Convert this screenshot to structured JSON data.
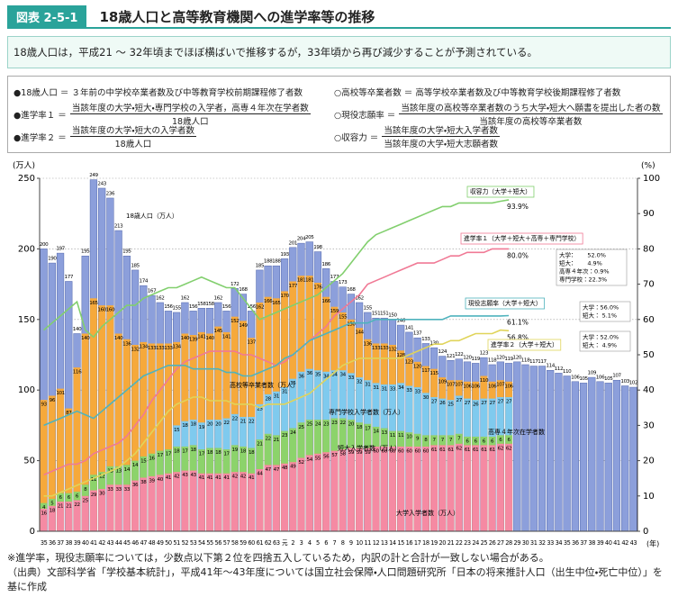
{
  "header": {
    "badge": "図表 2-5-1",
    "title": "18歳人口と高等教育機関への進学率等の推移"
  },
  "summary": "18歳人口は，平成21 ～ 32年頃までほぼ横ばいで推移するが，33年頃から再び減少することが予測されている。",
  "definitions": [
    {
      "label": "●18歳人口 ＝",
      "text": "３年前の中学校卒業者数及び中等教育学校前期課程修了者数"
    },
    {
      "label": "●進学率１ ＝",
      "num": "当該年度の大学・短大・専門学校の入学者，高専４年次在学者数",
      "den": "18歳人口"
    },
    {
      "label": "●進学率２ ＝",
      "num": "当該年度の大学・短大の入学者数",
      "den": "18歳人口"
    },
    {
      "label": "○高校等卒業者数 ＝",
      "text": "高等学校卒業者数及び中等教育学校後期課程修了者数"
    },
    {
      "label": "○現役志願率 ＝",
      "num": "当該年度の高校等卒業者数のうち大学・短大へ願書を提出した者の数",
      "den": "当該年度の高校等卒業者数"
    },
    {
      "label": "○収容力 ＝",
      "num": "当該年度の大学・短大入学者数",
      "den": "当該年度の大学・短大志願者数"
    }
  ],
  "chart_data": {
    "type": "bar",
    "y_label": "(万人)",
    "y2_label": "(%)",
    "x_label": "(年)",
    "ylim": [
      0,
      250
    ],
    "yticks": [
      0,
      50,
      100,
      150,
      200,
      250
    ],
    "y2lim": [
      0,
      100
    ],
    "y2ticks": [
      0,
      10,
      20,
      30,
      40,
      50,
      60,
      70,
      80,
      90,
      100
    ],
    "grid": true,
    "categories": [
      "35",
      "36",
      "37",
      "38",
      "39",
      "40",
      "41",
      "42",
      "43",
      "44",
      "45",
      "46",
      "47",
      "48",
      "49",
      "50",
      "51",
      "52",
      "53",
      "54",
      "55",
      "56",
      "57",
      "58",
      "59",
      "60",
      "61",
      "62",
      "63",
      "元",
      "2",
      "3",
      "4",
      "5",
      "6",
      "7",
      "8",
      "9",
      "10",
      "11",
      "12",
      "13",
      "14",
      "15",
      "16",
      "17",
      "18",
      "19",
      "20",
      "21",
      "22",
      "23",
      "24",
      "25",
      "26",
      "27",
      "28",
      "29",
      "30",
      "31",
      "32",
      "33",
      "34",
      "35",
      "36",
      "37",
      "38",
      "39",
      "40",
      "41",
      "42",
      "43"
    ],
    "series": [
      {
        "name": "18歳人口（万人）",
        "type": "bar",
        "stacked": false,
        "color": "#8c9fdb",
        "values": [
          200,
          190,
          197,
          177,
          140,
          195,
          249,
          243,
          236,
          213,
          195,
          185,
          174,
          167,
          162,
          156,
          155,
          162,
          156,
          158,
          158,
          162,
          156,
          172,
          168,
          156,
          185,
          188,
          188,
          193,
          201,
          204,
          205,
          198,
          186,
          177,
          173,
          168,
          162,
          155,
          151,
          151,
          150,
          146,
          141,
          137,
          133,
          130,
          124,
          121,
          122,
          120,
          119,
          123,
          118,
          120,
          119,
          120,
          118,
          117,
          117,
          114,
          112,
          110,
          106,
          105,
          109,
          106,
          105,
          107,
          103,
          102
        ]
      },
      {
        "name": "高校等卒業者数（万人）",
        "type": "bar",
        "stacked": false,
        "color": "#f6a93b",
        "values": [
          93,
          96,
          101,
          87,
          116,
          140,
          165,
          160,
          160,
          140,
          136,
          132,
          134,
          133,
          133,
          133,
          134,
          140,
          139,
          141,
          140,
          145,
          141,
          152,
          149,
          137,
          162,
          166,
          165,
          170,
          177,
          181,
          181,
          176,
          166,
          159,
          155,
          150,
          144,
          136,
          133,
          133,
          132,
          128,
          123,
          120,
          117,
          115,
          109,
          107,
          107,
          106,
          106,
          110,
          106,
          107,
          106,
          null,
          null,
          null,
          null,
          null,
          null,
          null,
          null,
          null,
          null,
          null,
          null,
          null,
          null,
          null
        ]
      },
      {
        "name": "大学入学者数（万人）",
        "type": "bar",
        "stacked": true,
        "color": "#f58aa3",
        "values": [
          16,
          18,
          21,
          21,
          22,
          25,
          29,
          30,
          33,
          33,
          33,
          36,
          38,
          39,
          40,
          41,
          42,
          43,
          43,
          41,
          41,
          41,
          41,
          42,
          42,
          41,
          44,
          47,
          47,
          48,
          49,
          52,
          54,
          55,
          56,
          57,
          58,
          59,
          59,
          59,
          60,
          60,
          60,
          60,
          60,
          60,
          60,
          61,
          61,
          61,
          62,
          61,
          61,
          61,
          61,
          62,
          62,
          null,
          null,
          null,
          null,
          null,
          null,
          null,
          null,
          null,
          null,
          null,
          null,
          null,
          null,
          null
        ]
      },
      {
        "name": "短大入学者数（万人）",
        "type": "bar",
        "stacked": true,
        "color": "#8cd36b",
        "values": [
          4,
          5,
          6,
          6,
          6,
          8,
          11,
          12,
          13,
          13,
          14,
          14,
          15,
          16,
          17,
          17,
          18,
          17,
          18,
          17,
          18,
          18,
          17,
          19,
          18,
          18,
          21,
          22,
          21,
          23,
          24,
          25,
          25,
          24,
          23,
          23,
          22,
          20,
          18,
          17,
          14,
          13,
          11,
          11,
          10,
          9,
          8,
          7,
          7,
          7,
          7,
          6,
          6,
          6,
          6,
          6,
          6,
          null,
          null,
          null,
          null,
          null,
          null,
          null,
          null,
          null,
          null,
          null,
          null,
          null,
          null,
          null
        ]
      },
      {
        "name": "専門学校入学者数（万人）",
        "type": "bar",
        "stacked": true,
        "color": "#7fcaee",
        "values": [
          null,
          null,
          null,
          null,
          null,
          null,
          null,
          null,
          null,
          null,
          null,
          null,
          null,
          null,
          null,
          null,
          15,
          18,
          18,
          19,
          20,
          20,
          22,
          22,
          21,
          22,
          25,
          28,
          31,
          31,
          35,
          36,
          36,
          35,
          34,
          34,
          34,
          33,
          32,
          31,
          31,
          31,
          33,
          34,
          33,
          33,
          30,
          27,
          26,
          25,
          27,
          27,
          26,
          27,
          27,
          27,
          27,
          null,
          null,
          null,
          null,
          null,
          null,
          null,
          null,
          null,
          null,
          null,
          null,
          null,
          null,
          null
        ]
      },
      {
        "name": "収容力（大学＋短大）",
        "type": "line",
        "axis": "y2",
        "color": "#82cf6e",
        "values": [
          57,
          59,
          61,
          63,
          65,
          57,
          55,
          58,
          60,
          62,
          64,
          64,
          66,
          67,
          68,
          69,
          69,
          70,
          71,
          72,
          71,
          70,
          69,
          69,
          66,
          63,
          60,
          61,
          62,
          63,
          64,
          65,
          66,
          67,
          69,
          71,
          73,
          76,
          79,
          82,
          84,
          85,
          86,
          87,
          88,
          89,
          90,
          91,
          92,
          92,
          93,
          93,
          93,
          93,
          93,
          93.5,
          93.9,
          null,
          null,
          null,
          null,
          null,
          null,
          null,
          null,
          null,
          null,
          null,
          null,
          null,
          null,
          null
        ],
        "value_labels": [
          null,
          null,
          null,
          null,
          null,
          null,
          null,
          null,
          null,
          null,
          null,
          null,
          null,
          null,
          null,
          null,
          null,
          null,
          null,
          null,
          null,
          null,
          null,
          null,
          null,
          null,
          null,
          null,
          null,
          null,
          null,
          null,
          null,
          null,
          null,
          null,
          null,
          null,
          null,
          null,
          null,
          null,
          null,
          null,
          null,
          null,
          null,
          null,
          null,
          null,
          null,
          null,
          null,
          null,
          null,
          null,
          "93.9%",
          null,
          null,
          null,
          null,
          null,
          null,
          null,
          null,
          null,
          null,
          null,
          null,
          null,
          null,
          null
        ]
      },
      {
        "name": "進学率１（大学＋短大＋高専＋専門学校）",
        "type": "line",
        "axis": "y2",
        "color": "#f07995",
        "values": [
          16,
          17,
          18,
          19,
          19,
          20,
          22,
          23,
          24,
          25,
          27,
          30,
          33,
          37,
          40,
          43,
          46,
          48,
          49,
          50,
          51,
          51,
          51,
          51,
          50,
          50,
          49,
          48,
          47,
          48,
          50,
          52,
          54,
          56,
          58,
          61,
          63,
          65,
          67,
          70,
          71,
          72,
          73,
          74,
          75,
          76,
          76,
          76,
          77,
          78,
          78,
          79,
          79,
          79,
          80,
          80,
          80.0,
          null,
          null,
          null,
          null,
          null,
          null,
          null,
          null,
          null,
          null,
          null,
          null,
          null,
          null,
          null
        ],
        "value_labels": [
          null,
          null,
          null,
          null,
          null,
          null,
          null,
          null,
          null,
          null,
          null,
          null,
          null,
          null,
          null,
          null,
          null,
          null,
          null,
          null,
          null,
          null,
          null,
          null,
          null,
          null,
          null,
          null,
          null,
          null,
          null,
          null,
          null,
          null,
          null,
          null,
          null,
          null,
          null,
          null,
          null,
          null,
          null,
          null,
          null,
          null,
          null,
          null,
          null,
          null,
          null,
          null,
          null,
          null,
          null,
          null,
          "80.0%",
          null,
          null,
          null,
          null,
          null,
          null,
          null,
          null,
          null,
          null,
          null,
          null,
          null,
          null,
          null
        ]
      },
      {
        "name": "現役志願率（大学＋短大）",
        "type": "line",
        "axis": "y2",
        "color": "#4fb3bd",
        "values": [
          30,
          31,
          32,
          33,
          34,
          33,
          32,
          34,
          36,
          38,
          40,
          42,
          44,
          45,
          46,
          47,
          47,
          47,
          46,
          46,
          46,
          46,
          45,
          45,
          44,
          44,
          45,
          46,
          47,
          49,
          50,
          52,
          54,
          55,
          56,
          57,
          58,
          59,
          59,
          59,
          60,
          60,
          60,
          60,
          60,
          60,
          60,
          60,
          60,
          61,
          61,
          61,
          61,
          61,
          61,
          61,
          61.1,
          null,
          null,
          null,
          null,
          null,
          null,
          null,
          null,
          null,
          null,
          null,
          null,
          null,
          null,
          null
        ],
        "value_labels": [
          null,
          null,
          null,
          null,
          null,
          null,
          null,
          null,
          null,
          null,
          null,
          null,
          null,
          null,
          null,
          null,
          null,
          null,
          null,
          null,
          null,
          null,
          null,
          null,
          null,
          null,
          null,
          null,
          null,
          null,
          null,
          null,
          null,
          null,
          null,
          null,
          null,
          null,
          null,
          null,
          null,
          null,
          null,
          null,
          null,
          null,
          null,
          null,
          null,
          null,
          null,
          null,
          null,
          null,
          null,
          null,
          "61.1%",
          null,
          null,
          null,
          null,
          null,
          null,
          null,
          null,
          null,
          null,
          null,
          null,
          null,
          null,
          null
        ]
      },
      {
        "name": "進学率２（大学＋短大）",
        "type": "line",
        "axis": "y2",
        "color": "#e0d45a",
        "values": [
          10,
          10,
          11,
          12,
          13,
          14,
          15,
          16,
          17,
          18,
          20,
          22,
          25,
          28,
          31,
          34,
          36,
          37,
          38,
          38,
          37,
          37,
          37,
          36,
          36,
          36,
          35,
          36,
          36,
          36,
          37,
          38,
          39,
          41,
          43,
          45,
          47,
          48,
          49,
          49,
          49,
          49,
          49,
          49,
          50,
          51,
          52,
          53,
          53,
          54,
          54,
          55,
          56,
          56,
          56,
          57,
          56.8,
          null,
          null,
          null,
          null,
          null,
          null,
          null,
          null,
          null,
          null,
          null,
          null,
          null,
          null,
          null
        ],
        "value_labels": [
          null,
          null,
          null,
          null,
          null,
          null,
          null,
          null,
          null,
          null,
          null,
          null,
          null,
          null,
          null,
          null,
          null,
          null,
          null,
          null,
          null,
          null,
          null,
          null,
          null,
          null,
          null,
          null,
          null,
          null,
          null,
          null,
          null,
          null,
          null,
          null,
          null,
          null,
          null,
          null,
          null,
          null,
          null,
          null,
          null,
          null,
          null,
          null,
          null,
          null,
          null,
          null,
          null,
          null,
          null,
          null,
          "56.8%",
          null,
          null,
          null,
          null,
          null,
          null,
          null,
          null,
          null,
          null,
          null,
          null,
          null,
          null,
          null
        ]
      }
    ],
    "annotations": [
      "高専４年次在学者数"
    ],
    "boxes": [
      [
        "大学：　 　52.0%",
        "短大：　　 4.9%",
        "高専４年次：0.9%",
        "専門学校：22.3%"
      ],
      [
        "大学：56.0%",
        "短大：  5.1%"
      ],
      [
        "大学：52.0%",
        "短大：  4.9%"
      ]
    ]
  },
  "notes": [
    "※進学率，現役志願率については，少数点以下第２位を四捨五入しているため，内訳の計と合計が一致しない場合がある。",
    "（出典）文部科学省「学校基本統計」，平成41年～43年度については国立社会保障・人口問題研究所「日本の将来推計人口（出生中位・死亡中位）」を基に作成"
  ]
}
